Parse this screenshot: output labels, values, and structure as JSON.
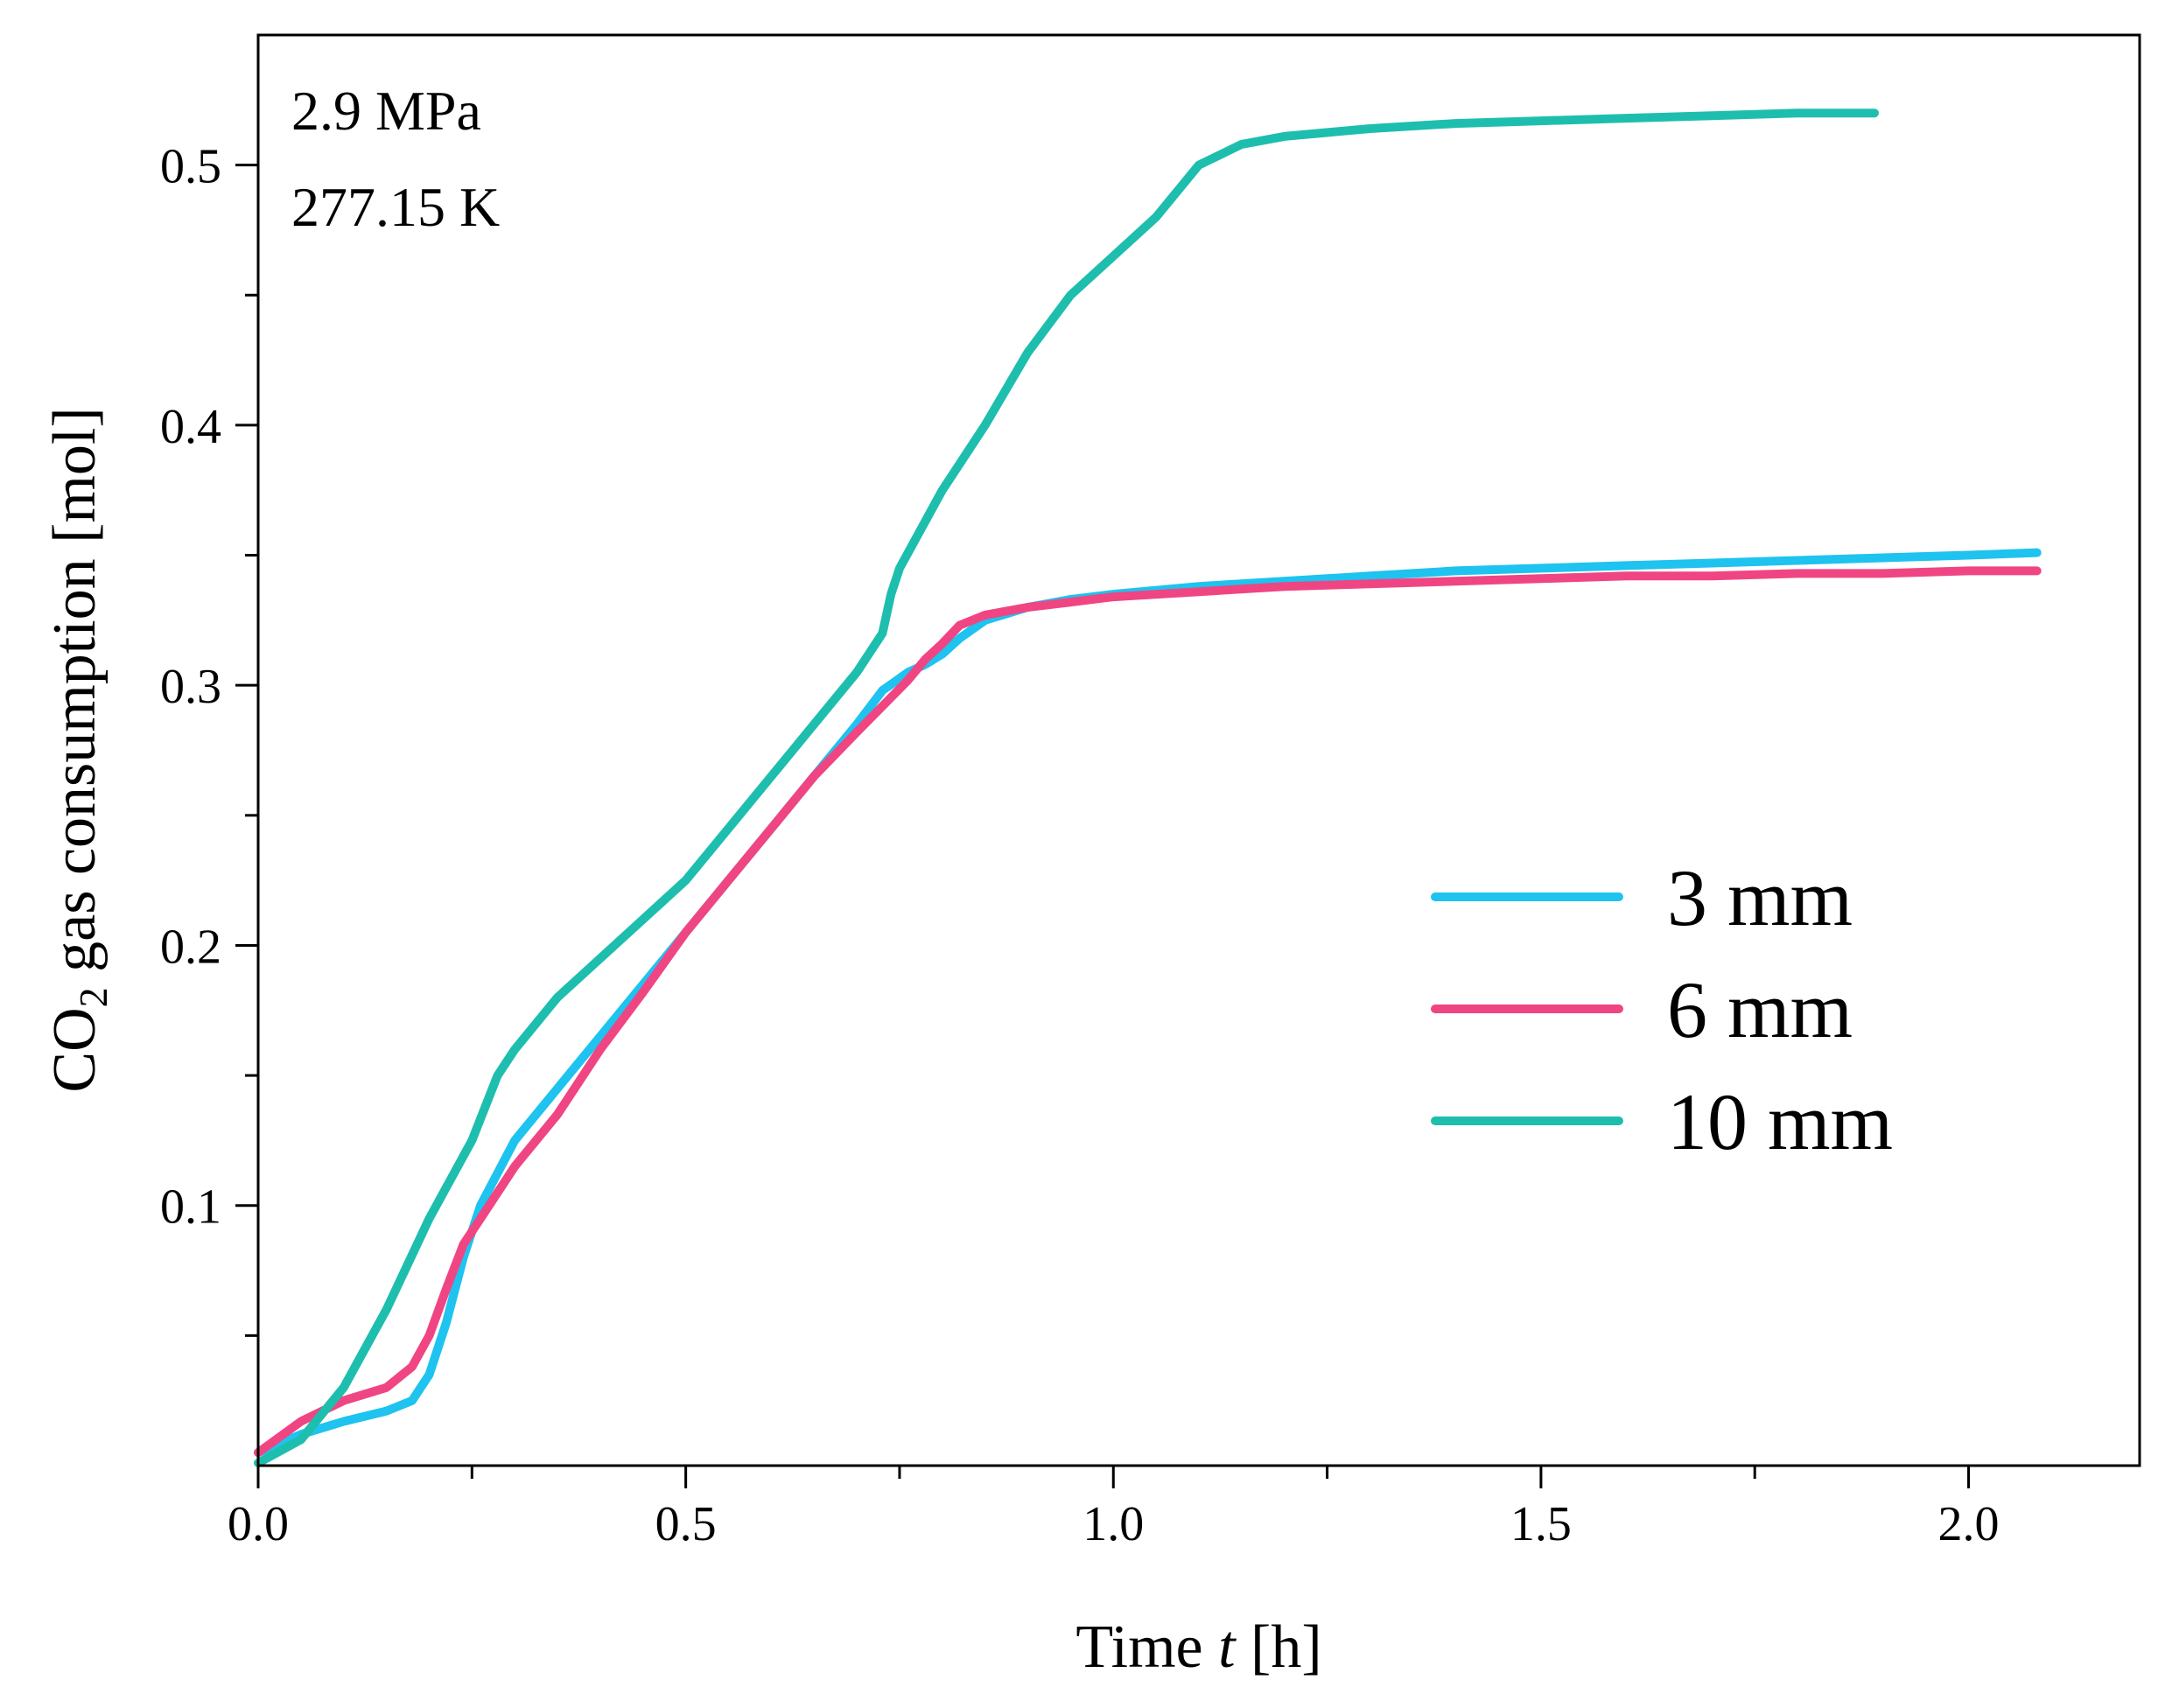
{
  "chart_data": {
    "type": "line",
    "title": "",
    "xlabel": {
      "prefix": "Time ",
      "var": "t",
      "suffix": " [h]"
    },
    "ylabel": {
      "prefix": "CO",
      "sub": "2",
      "suffix": " gas consumption [mol]"
    },
    "xlim": [
      0.0,
      2.2
    ],
    "ylim": [
      0.0,
      0.55
    ],
    "x_major_ticks": [
      0.0,
      0.5,
      1.0,
      1.5,
      2.0
    ],
    "x_tick_labels": [
      "0.0",
      "0.5",
      "1.0",
      "1.5",
      "2.0"
    ],
    "x_minor_ticks": [
      0.25,
      0.75,
      1.25,
      1.75
    ],
    "y_major_ticks": [
      0.1,
      0.2,
      0.3,
      0.4,
      0.5
    ],
    "y_tick_labels": [
      "0.1",
      "0.2",
      "0.3",
      "0.4",
      "0.5"
    ],
    "y_minor_ticks": [
      0.05,
      0.15,
      0.25,
      0.35,
      0.45
    ],
    "grid": false,
    "legend_position": "center-right",
    "annotations": [
      "2.9 MPa",
      "277.15 K"
    ],
    "series": [
      {
        "name": "3 mm",
        "color": "#1ec3ef",
        "x": [
          0.0,
          0.05,
          0.1,
          0.15,
          0.18,
          0.2,
          0.22,
          0.24,
          0.26,
          0.3,
          0.35,
          0.4,
          0.45,
          0.5,
          0.55,
          0.6,
          0.65,
          0.7,
          0.73,
          0.76,
          0.78,
          0.8,
          0.82,
          0.85,
          0.9,
          0.95,
          1.0,
          1.1,
          1.2,
          1.3,
          1.4,
          1.5,
          1.6,
          1.7,
          1.8,
          1.9,
          2.0,
          2.08
        ],
        "y": [
          0.005,
          0.012,
          0.017,
          0.021,
          0.025,
          0.035,
          0.055,
          0.08,
          0.1,
          0.125,
          0.145,
          0.165,
          0.185,
          0.205,
          0.225,
          0.245,
          0.265,
          0.285,
          0.298,
          0.305,
          0.308,
          0.312,
          0.318,
          0.325,
          0.33,
          0.333,
          0.335,
          0.338,
          0.34,
          0.342,
          0.344,
          0.345,
          0.346,
          0.347,
          0.348,
          0.349,
          0.35,
          0.351
        ]
      },
      {
        "name": "6 mm",
        "color": "#f04583",
        "x": [
          0.0,
          0.05,
          0.1,
          0.15,
          0.18,
          0.2,
          0.22,
          0.24,
          0.26,
          0.3,
          0.35,
          0.4,
          0.45,
          0.5,
          0.55,
          0.6,
          0.65,
          0.7,
          0.73,
          0.76,
          0.78,
          0.8,
          0.82,
          0.85,
          0.9,
          0.95,
          1.0,
          1.1,
          1.2,
          1.3,
          1.4,
          1.5,
          1.6,
          1.7,
          1.8,
          1.9,
          2.0,
          2.08
        ],
        "y": [
          0.005,
          0.017,
          0.025,
          0.03,
          0.038,
          0.05,
          0.068,
          0.085,
          0.095,
          0.115,
          0.135,
          0.16,
          0.182,
          0.205,
          0.225,
          0.245,
          0.265,
          0.282,
          0.292,
          0.302,
          0.31,
          0.316,
          0.323,
          0.327,
          0.33,
          0.332,
          0.334,
          0.336,
          0.338,
          0.339,
          0.34,
          0.341,
          0.342,
          0.342,
          0.343,
          0.343,
          0.344,
          0.344
        ]
      },
      {
        "name": "10 mm",
        "color": "#1ebeae",
        "x": [
          0.0,
          0.05,
          0.1,
          0.15,
          0.2,
          0.25,
          0.28,
          0.3,
          0.35,
          0.4,
          0.45,
          0.5,
          0.55,
          0.6,
          0.65,
          0.7,
          0.72,
          0.73,
          0.74,
          0.75,
          0.8,
          0.85,
          0.9,
          0.95,
          1.0,
          1.05,
          1.1,
          1.15,
          1.2,
          1.3,
          1.4,
          1.5,
          1.6,
          1.7,
          1.8,
          1.89
        ],
        "y": [
          0.001,
          0.01,
          0.03,
          0.06,
          0.095,
          0.125,
          0.15,
          0.16,
          0.18,
          0.195,
          0.21,
          0.225,
          0.245,
          0.265,
          0.285,
          0.305,
          0.315,
          0.32,
          0.335,
          0.345,
          0.375,
          0.4,
          0.428,
          0.45,
          0.465,
          0.48,
          0.5,
          0.508,
          0.511,
          0.514,
          0.516,
          0.517,
          0.518,
          0.519,
          0.52,
          0.52
        ]
      }
    ]
  }
}
